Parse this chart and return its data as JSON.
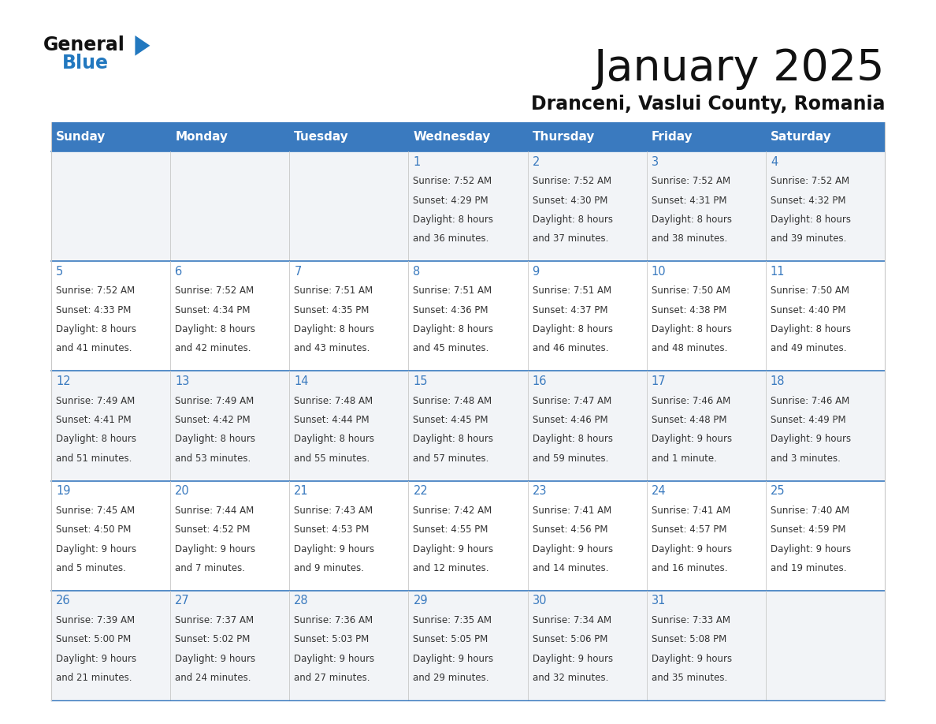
{
  "title": "January 2025",
  "subtitle": "Dranceni, Vaslui County, Romania",
  "days_of_week": [
    "Sunday",
    "Monday",
    "Tuesday",
    "Wednesday",
    "Thursday",
    "Friday",
    "Saturday"
  ],
  "header_bg": "#3a7abf",
  "header_text": "#FFFFFF",
  "cell_bg_odd": "#F2F4F7",
  "cell_bg_even": "#FFFFFF",
  "row_border_color": "#3a7abf",
  "col_border_color": "#C8C8C8",
  "title_color": "#111111",
  "subtitle_color": "#111111",
  "text_color": "#333333",
  "day_num_color": "#3a7abf",
  "logo_text_color": "#111111",
  "logo_blue_color": "#2278bf",
  "calendar": [
    [
      {
        "day": null,
        "data": null
      },
      {
        "day": null,
        "data": null
      },
      {
        "day": null,
        "data": null
      },
      {
        "day": 1,
        "data": {
          "sunrise": "7:52 AM",
          "sunset": "4:29 PM",
          "daylight": "8 hours",
          "daylight2": "and 36 minutes."
        }
      },
      {
        "day": 2,
        "data": {
          "sunrise": "7:52 AM",
          "sunset": "4:30 PM",
          "daylight": "8 hours",
          "daylight2": "and 37 minutes."
        }
      },
      {
        "day": 3,
        "data": {
          "sunrise": "7:52 AM",
          "sunset": "4:31 PM",
          "daylight": "8 hours",
          "daylight2": "and 38 minutes."
        }
      },
      {
        "day": 4,
        "data": {
          "sunrise": "7:52 AM",
          "sunset": "4:32 PM",
          "daylight": "8 hours",
          "daylight2": "and 39 minutes."
        }
      }
    ],
    [
      {
        "day": 5,
        "data": {
          "sunrise": "7:52 AM",
          "sunset": "4:33 PM",
          "daylight": "8 hours",
          "daylight2": "and 41 minutes."
        }
      },
      {
        "day": 6,
        "data": {
          "sunrise": "7:52 AM",
          "sunset": "4:34 PM",
          "daylight": "8 hours",
          "daylight2": "and 42 minutes."
        }
      },
      {
        "day": 7,
        "data": {
          "sunrise": "7:51 AM",
          "sunset": "4:35 PM",
          "daylight": "8 hours",
          "daylight2": "and 43 minutes."
        }
      },
      {
        "day": 8,
        "data": {
          "sunrise": "7:51 AM",
          "sunset": "4:36 PM",
          "daylight": "8 hours",
          "daylight2": "and 45 minutes."
        }
      },
      {
        "day": 9,
        "data": {
          "sunrise": "7:51 AM",
          "sunset": "4:37 PM",
          "daylight": "8 hours",
          "daylight2": "and 46 minutes."
        }
      },
      {
        "day": 10,
        "data": {
          "sunrise": "7:50 AM",
          "sunset": "4:38 PM",
          "daylight": "8 hours",
          "daylight2": "and 48 minutes."
        }
      },
      {
        "day": 11,
        "data": {
          "sunrise": "7:50 AM",
          "sunset": "4:40 PM",
          "daylight": "8 hours",
          "daylight2": "and 49 minutes."
        }
      }
    ],
    [
      {
        "day": 12,
        "data": {
          "sunrise": "7:49 AM",
          "sunset": "4:41 PM",
          "daylight": "8 hours",
          "daylight2": "and 51 minutes."
        }
      },
      {
        "day": 13,
        "data": {
          "sunrise": "7:49 AM",
          "sunset": "4:42 PM",
          "daylight": "8 hours",
          "daylight2": "and 53 minutes."
        }
      },
      {
        "day": 14,
        "data": {
          "sunrise": "7:48 AM",
          "sunset": "4:44 PM",
          "daylight": "8 hours",
          "daylight2": "and 55 minutes."
        }
      },
      {
        "day": 15,
        "data": {
          "sunrise": "7:48 AM",
          "sunset": "4:45 PM",
          "daylight": "8 hours",
          "daylight2": "and 57 minutes."
        }
      },
      {
        "day": 16,
        "data": {
          "sunrise": "7:47 AM",
          "sunset": "4:46 PM",
          "daylight": "8 hours",
          "daylight2": "and 59 minutes."
        }
      },
      {
        "day": 17,
        "data": {
          "sunrise": "7:46 AM",
          "sunset": "4:48 PM",
          "daylight": "9 hours",
          "daylight2": "and 1 minute."
        }
      },
      {
        "day": 18,
        "data": {
          "sunrise": "7:46 AM",
          "sunset": "4:49 PM",
          "daylight": "9 hours",
          "daylight2": "and 3 minutes."
        }
      }
    ],
    [
      {
        "day": 19,
        "data": {
          "sunrise": "7:45 AM",
          "sunset": "4:50 PM",
          "daylight": "9 hours",
          "daylight2": "and 5 minutes."
        }
      },
      {
        "day": 20,
        "data": {
          "sunrise": "7:44 AM",
          "sunset": "4:52 PM",
          "daylight": "9 hours",
          "daylight2": "and 7 minutes."
        }
      },
      {
        "day": 21,
        "data": {
          "sunrise": "7:43 AM",
          "sunset": "4:53 PM",
          "daylight": "9 hours",
          "daylight2": "and 9 minutes."
        }
      },
      {
        "day": 22,
        "data": {
          "sunrise": "7:42 AM",
          "sunset": "4:55 PM",
          "daylight": "9 hours",
          "daylight2": "and 12 minutes."
        }
      },
      {
        "day": 23,
        "data": {
          "sunrise": "7:41 AM",
          "sunset": "4:56 PM",
          "daylight": "9 hours",
          "daylight2": "and 14 minutes."
        }
      },
      {
        "day": 24,
        "data": {
          "sunrise": "7:41 AM",
          "sunset": "4:57 PM",
          "daylight": "9 hours",
          "daylight2": "and 16 minutes."
        }
      },
      {
        "day": 25,
        "data": {
          "sunrise": "7:40 AM",
          "sunset": "4:59 PM",
          "daylight": "9 hours",
          "daylight2": "and 19 minutes."
        }
      }
    ],
    [
      {
        "day": 26,
        "data": {
          "sunrise": "7:39 AM",
          "sunset": "5:00 PM",
          "daylight": "9 hours",
          "daylight2": "and 21 minutes."
        }
      },
      {
        "day": 27,
        "data": {
          "sunrise": "7:37 AM",
          "sunset": "5:02 PM",
          "daylight": "9 hours",
          "daylight2": "and 24 minutes."
        }
      },
      {
        "day": 28,
        "data": {
          "sunrise": "7:36 AM",
          "sunset": "5:03 PM",
          "daylight": "9 hours",
          "daylight2": "and 27 minutes."
        }
      },
      {
        "day": 29,
        "data": {
          "sunrise": "7:35 AM",
          "sunset": "5:05 PM",
          "daylight": "9 hours",
          "daylight2": "and 29 minutes."
        }
      },
      {
        "day": 30,
        "data": {
          "sunrise": "7:34 AM",
          "sunset": "5:06 PM",
          "daylight": "9 hours",
          "daylight2": "and 32 minutes."
        }
      },
      {
        "day": 31,
        "data": {
          "sunrise": "7:33 AM",
          "sunset": "5:08 PM",
          "daylight": "9 hours",
          "daylight2": "and 35 minutes."
        }
      },
      {
        "day": null,
        "data": null
      }
    ]
  ]
}
